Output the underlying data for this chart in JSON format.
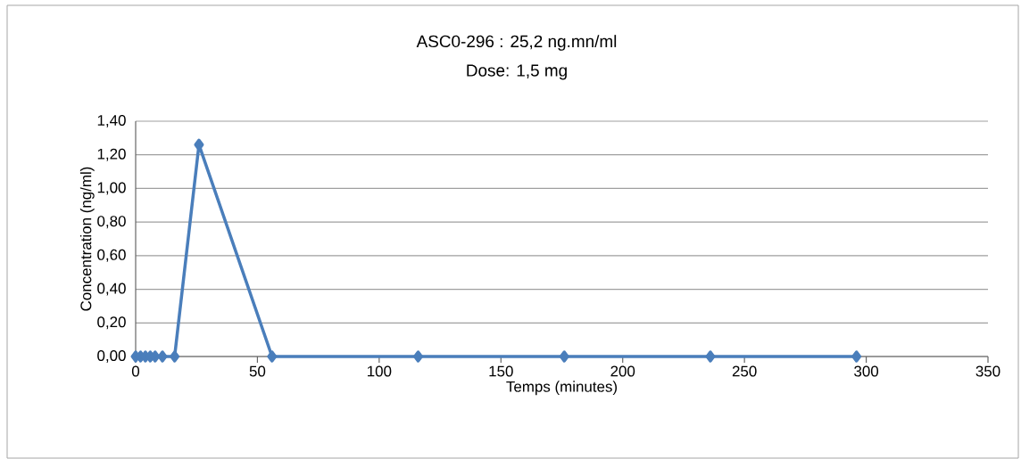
{
  "chart_data": {
    "type": "line",
    "title": "ASC0-296 : 25,2 ng.mn/ml",
    "subtitle": "Dose: 1,5 mg",
    "xlabel": "Temps (minutes)",
    "ylabel": "Concentration (ng/ml)",
    "x": [
      0,
      2,
      4,
      6,
      8,
      11,
      16,
      26,
      56,
      116,
      176,
      236,
      296
    ],
    "series": [
      {
        "color": "#4a7ebb",
        "values": [
          0,
          0,
          0,
          0,
          0,
          0,
          0,
          1.26,
          0,
          0,
          0,
          0,
          0
        ]
      }
    ],
    "xlim": [
      0,
      350
    ],
    "xticks": [
      0,
      50,
      100,
      150,
      200,
      250,
      300,
      350
    ],
    "ylim": [
      0,
      1.4
    ],
    "yticks": [
      {
        "value": 0,
        "label": "0,00"
      },
      {
        "value": 0.2,
        "label": "0,20"
      },
      {
        "value": 0.4,
        "label": "0,40"
      },
      {
        "value": 0.6,
        "label": "0,60"
      },
      {
        "value": 0.8,
        "label": "0,80"
      },
      {
        "value": 1.0,
        "label": "1,00"
      },
      {
        "value": 1.2,
        "label": "1,20"
      },
      {
        "value": 1.4,
        "label": "1,40"
      }
    ],
    "grid": "y",
    "marker": "diamond",
    "line_style": "solid"
  }
}
